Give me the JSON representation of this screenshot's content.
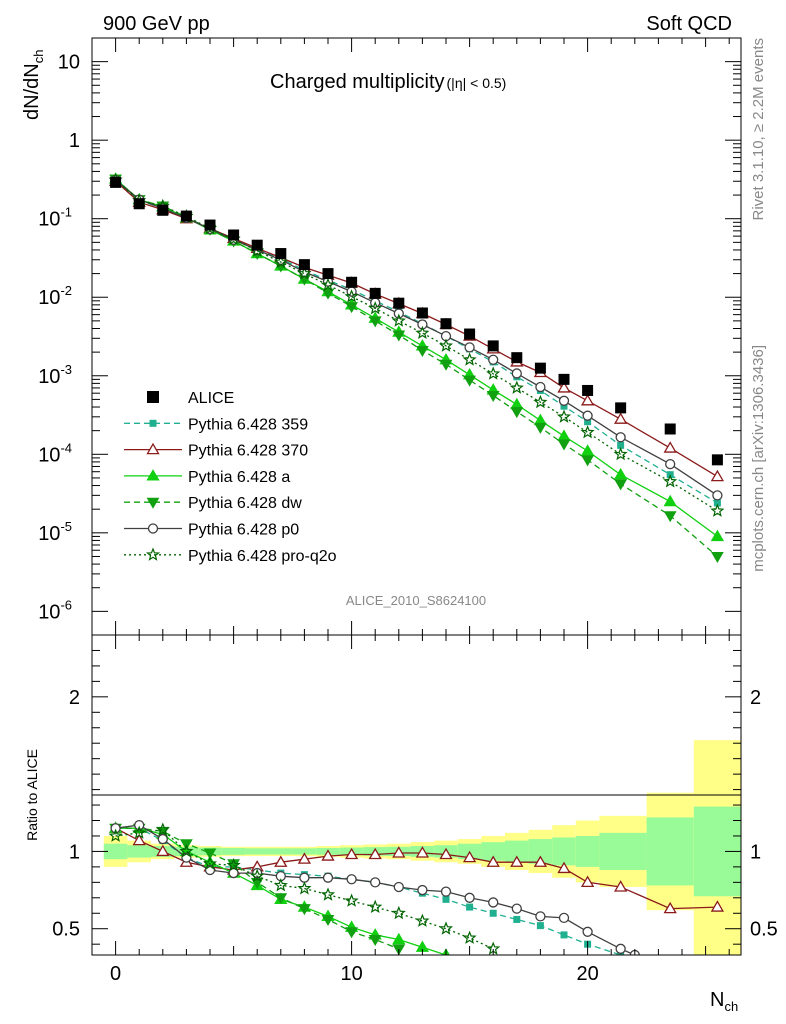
{
  "header": {
    "left": "900 GeV pp",
    "right": "Soft QCD"
  },
  "side_text": {
    "rivet": "Rivet 3.1.10, ≥ 2.2M events",
    "mcplots": "mcplots.cern.ch [arXiv:1306.3436]"
  },
  "analysis_id": "ALICE_2010_S8624100",
  "chart_data": [
    {
      "type": "line",
      "title_main": "Charged multiplicity",
      "title_cut": "(|η| < 0.5)",
      "ylabel_base": "dN/dN",
      "ylabel_sub": "ch",
      "xlabel_base": "N",
      "xlabel_sub": "ch",
      "xlim": [
        -1,
        26.5
      ],
      "ylim": [
        5e-07,
        20
      ],
      "yscale": "log",
      "y_ticks": [
        {
          "base": "10",
          "exp": "-6"
        },
        {
          "base": "10",
          "exp": "-5"
        },
        {
          "base": "10",
          "exp": "-4"
        },
        {
          "base": "10",
          "exp": "-3"
        },
        {
          "base": "10",
          "exp": "-2"
        },
        {
          "base": "10",
          "exp": "-1"
        },
        {
          "base": "1",
          "exp": ""
        },
        {
          "base": "10",
          "exp": ""
        }
      ],
      "legend_position": "bottom-left",
      "series": [
        {
          "name": "ALICE",
          "color": "#000000",
          "marker": "square-filled",
          "line": "none",
          "x": [
            0,
            1,
            2,
            3,
            4,
            5,
            6,
            7,
            8,
            9,
            10,
            11,
            12,
            13,
            14,
            15,
            16,
            17,
            18,
            19,
            20,
            21.4,
            23.5,
            25.5
          ],
          "y": [
            0.29,
            0.155,
            0.128,
            0.108,
            0.083,
            0.062,
            0.046,
            0.036,
            0.026,
            0.02,
            0.0155,
            0.0112,
            0.0084,
            0.0063,
            0.0046,
            0.0034,
            0.0024,
            0.0017,
            0.00125,
            0.0009,
            0.00065,
            0.00039,
            0.00021,
            8.5e-05
          ]
        },
        {
          "name": "Pythia 6.428 359",
          "color": "#20b090",
          "marker": "square-small",
          "line": "dashed",
          "x": [
            0,
            1,
            2,
            3,
            4,
            5,
            6,
            7,
            8,
            9,
            10,
            11,
            12,
            13,
            14,
            15,
            16,
            17,
            18,
            19,
            20,
            21.4,
            23.5,
            25.5
          ],
          "y": [
            0.3,
            0.17,
            0.137,
            0.104,
            0.075,
            0.056,
            0.041,
            0.031,
            0.022,
            0.0165,
            0.0125,
            0.009,
            0.0065,
            0.0046,
            0.0032,
            0.0022,
            0.0015,
            0.00097,
            0.00065,
            0.00041,
            0.00026,
            0.00013,
            5.5e-05,
            2.4e-05
          ]
        },
        {
          "name": "Pythia 6.428 370",
          "color": "#8b1a1a",
          "marker": "triangle-open",
          "line": "solid",
          "x": [
            0,
            1,
            2,
            3,
            4,
            5,
            6,
            7,
            8,
            9,
            10,
            11,
            12,
            13,
            14,
            15,
            16,
            17,
            18,
            19,
            20,
            21.4,
            23.5,
            25.5
          ],
          "y": [
            0.3,
            0.162,
            0.13,
            0.1,
            0.075,
            0.056,
            0.042,
            0.032,
            0.024,
            0.019,
            0.0152,
            0.011,
            0.0083,
            0.0062,
            0.0045,
            0.0032,
            0.0022,
            0.0015,
            0.0011,
            0.0007,
            0.00048,
            0.00028,
            0.00012,
            5.2e-05
          ]
        },
        {
          "name": "Pythia 6.428 a",
          "color": "#10d010",
          "marker": "triangle-filled",
          "line": "solid",
          "x": [
            0,
            1,
            2,
            3,
            4,
            5,
            6,
            7,
            8,
            9,
            10,
            11,
            12,
            13,
            14,
            15,
            16,
            17,
            18,
            19,
            20,
            21.4,
            23.5,
            25.5
          ],
          "y": [
            0.32,
            0.175,
            0.142,
            0.103,
            0.072,
            0.052,
            0.036,
            0.025,
            0.017,
            0.0118,
            0.008,
            0.0054,
            0.0036,
            0.0024,
            0.0016,
            0.00103,
            0.00066,
            0.00043,
            0.00027,
            0.00017,
            0.00011,
            5.5e-05,
            2.5e-05,
            9e-06
          ]
        },
        {
          "name": "Pythia 6.428 dw",
          "color": "#10a010",
          "marker": "triangle-down-filled",
          "line": "dashed",
          "x": [
            0,
            1,
            2,
            3,
            4,
            5,
            6,
            7,
            8,
            9,
            10,
            11,
            12,
            13,
            14,
            15,
            16,
            17,
            18,
            19,
            20,
            21.4,
            23.5,
            25.5
          ],
          "y": [
            0.32,
            0.175,
            0.145,
            0.105,
            0.073,
            0.052,
            0.036,
            0.025,
            0.017,
            0.0113,
            0.0076,
            0.005,
            0.0033,
            0.0021,
            0.0014,
            0.00088,
            0.00056,
            0.00035,
            0.00022,
            0.000135,
            8.5e-05,
            4.2e-05,
            1.65e-05,
            5e-06
          ]
        },
        {
          "name": "Pythia 6.428 p0",
          "color": "#404040",
          "marker": "circle-open",
          "line": "solid",
          "x": [
            0,
            1,
            2,
            3,
            4,
            5,
            6,
            7,
            8,
            9,
            10,
            11,
            12,
            13,
            14,
            15,
            16,
            17,
            18,
            19,
            20,
            21.4,
            23.5,
            25.5
          ],
          "y": [
            0.31,
            0.175,
            0.135,
            0.102,
            0.074,
            0.054,
            0.04,
            0.03,
            0.021,
            0.0158,
            0.0118,
            0.0085,
            0.0062,
            0.0045,
            0.0032,
            0.0023,
            0.0016,
            0.00107,
            0.00072,
            0.00048,
            0.00031,
            0.000165,
            7.5e-05,
            3e-05
          ]
        },
        {
          "name": "Pythia 6.428 pro-q2o",
          "color": "#006400",
          "marker": "star-open",
          "line": "dotted",
          "x": [
            0,
            1,
            2,
            3,
            4,
            5,
            6,
            7,
            8,
            9,
            10,
            11,
            12,
            13,
            14,
            15,
            16,
            17,
            18,
            19,
            20,
            21.4,
            23.5,
            25.5
          ],
          "y": [
            0.31,
            0.17,
            0.145,
            0.107,
            0.075,
            0.055,
            0.039,
            0.028,
            0.02,
            0.0143,
            0.0102,
            0.0072,
            0.005,
            0.0035,
            0.0024,
            0.0016,
            0.00106,
            0.0007,
            0.00046,
            0.0003,
            0.00019,
            0.0001,
            4.5e-05,
            1.9e-05
          ]
        }
      ]
    },
    {
      "type": "line",
      "ylabel": "Ratio to ALICE",
      "xlim": [
        -1,
        26.5
      ],
      "ylim": [
        0.33,
        2.4
      ],
      "y_ticks": [
        {
          "value": 0.5,
          "label": "0.5"
        },
        {
          "value": 1,
          "label": "1"
        },
        {
          "value": 2,
          "label": "2"
        }
      ],
      "x_ticks": [
        {
          "value": 0,
          "label": "0"
        },
        {
          "value": 10,
          "label": "10"
        },
        {
          "value": 20,
          "label": "20"
        }
      ],
      "reference_line": 1,
      "bands": {
        "edges": [
          -0.5,
          0.5,
          1.5,
          2.5,
          3.5,
          4.5,
          5.5,
          6.5,
          7.5,
          8.5,
          9.5,
          10.5,
          11.5,
          12.5,
          13.5,
          14.5,
          15.5,
          16.5,
          17.5,
          18.5,
          19.5,
          20.5,
          22.5,
          24.5,
          26.5
        ],
        "stat_color": "#98fb98",
        "stat_half_width": [
          0.05,
          0.04,
          0.035,
          0.03,
          0.025,
          0.022,
          0.02,
          0.02,
          0.02,
          0.022,
          0.025,
          0.028,
          0.03,
          0.035,
          0.04,
          0.05,
          0.06,
          0.07,
          0.08,
          0.09,
          0.1,
          0.12,
          0.22,
          0.29
        ],
        "syst_color": "#ffff88",
        "syst_half_width": [
          0.1,
          0.07,
          0.05,
          0.04,
          0.035,
          0.03,
          0.03,
          0.03,
          0.03,
          0.035,
          0.04,
          0.045,
          0.05,
          0.06,
          0.07,
          0.08,
          0.1,
          0.12,
          0.14,
          0.17,
          0.2,
          0.23,
          0.38,
          0.72
        ]
      },
      "series": [
        {
          "name": "Pythia 6.428 359",
          "x": [
            0,
            1,
            2,
            3,
            4,
            5,
            6,
            7,
            8,
            9,
            10,
            11,
            12,
            13,
            14,
            15,
            16,
            17,
            18,
            19,
            20,
            21.4
          ],
          "y": [
            1.15,
            1.15,
            1.07,
            0.96,
            0.9,
            0.9,
            0.88,
            0.86,
            0.85,
            0.84,
            0.82,
            0.8,
            0.77,
            0.73,
            0.69,
            0.64,
            0.6,
            0.56,
            0.52,
            0.46,
            0.4,
            0.33
          ]
        },
        {
          "name": "Pythia 6.428 370",
          "x": [
            0,
            1,
            2,
            3,
            4,
            5,
            6,
            7,
            8,
            9,
            10,
            11,
            12,
            13,
            14,
            15,
            16,
            17,
            18,
            19,
            20,
            21.4,
            23.5,
            25.5
          ],
          "y": [
            1.15,
            1.07,
            1.0,
            0.93,
            0.9,
            0.88,
            0.9,
            0.93,
            0.95,
            0.97,
            0.98,
            0.98,
            0.99,
            0.99,
            0.98,
            0.96,
            0.93,
            0.93,
            0.93,
            0.89,
            0.8,
            0.77,
            0.63,
            0.64
          ]
        },
        {
          "name": "Pythia 6.428 a",
          "x": [
            0,
            1,
            2,
            3,
            4,
            5,
            6,
            7,
            8,
            9,
            10,
            11,
            12,
            13,
            14
          ],
          "y": [
            1.15,
            1.15,
            1.11,
            1.0,
            0.93,
            0.86,
            0.78,
            0.69,
            0.64,
            0.58,
            0.51,
            0.46,
            0.43,
            0.38,
            0.33
          ]
        },
        {
          "name": "Pythia 6.428 dw",
          "x": [
            0,
            1,
            2,
            3,
            4,
            5,
            6,
            7,
            8,
            9,
            10,
            11,
            12
          ],
          "y": [
            1.15,
            1.15,
            1.13,
            1.05,
            0.99,
            0.92,
            0.8,
            0.7,
            0.63,
            0.56,
            0.48,
            0.43,
            0.37
          ]
        },
        {
          "name": "Pythia 6.428 p0",
          "x": [
            0,
            1,
            2,
            3,
            4,
            5,
            6,
            7,
            8,
            9,
            10,
            11,
            12,
            13,
            14,
            15,
            16,
            17,
            18,
            19,
            20,
            21.4,
            22
          ],
          "y": [
            1.15,
            1.17,
            1.08,
            0.96,
            0.88,
            0.86,
            0.86,
            0.84,
            0.83,
            0.83,
            0.82,
            0.8,
            0.77,
            0.75,
            0.74,
            0.7,
            0.67,
            0.63,
            0.58,
            0.57,
            0.48,
            0.37,
            0.33
          ]
        },
        {
          "name": "Pythia 6.428 pro-q2o",
          "x": [
            0,
            1,
            2,
            3,
            4,
            5,
            6,
            7,
            8,
            9,
            10,
            11,
            12,
            13,
            14,
            15,
            16
          ],
          "y": [
            1.1,
            1.12,
            1.14,
            1.0,
            0.92,
            0.91,
            0.84,
            0.78,
            0.76,
            0.72,
            0.68,
            0.64,
            0.6,
            0.55,
            0.5,
            0.44,
            0.37
          ]
        }
      ]
    }
  ]
}
